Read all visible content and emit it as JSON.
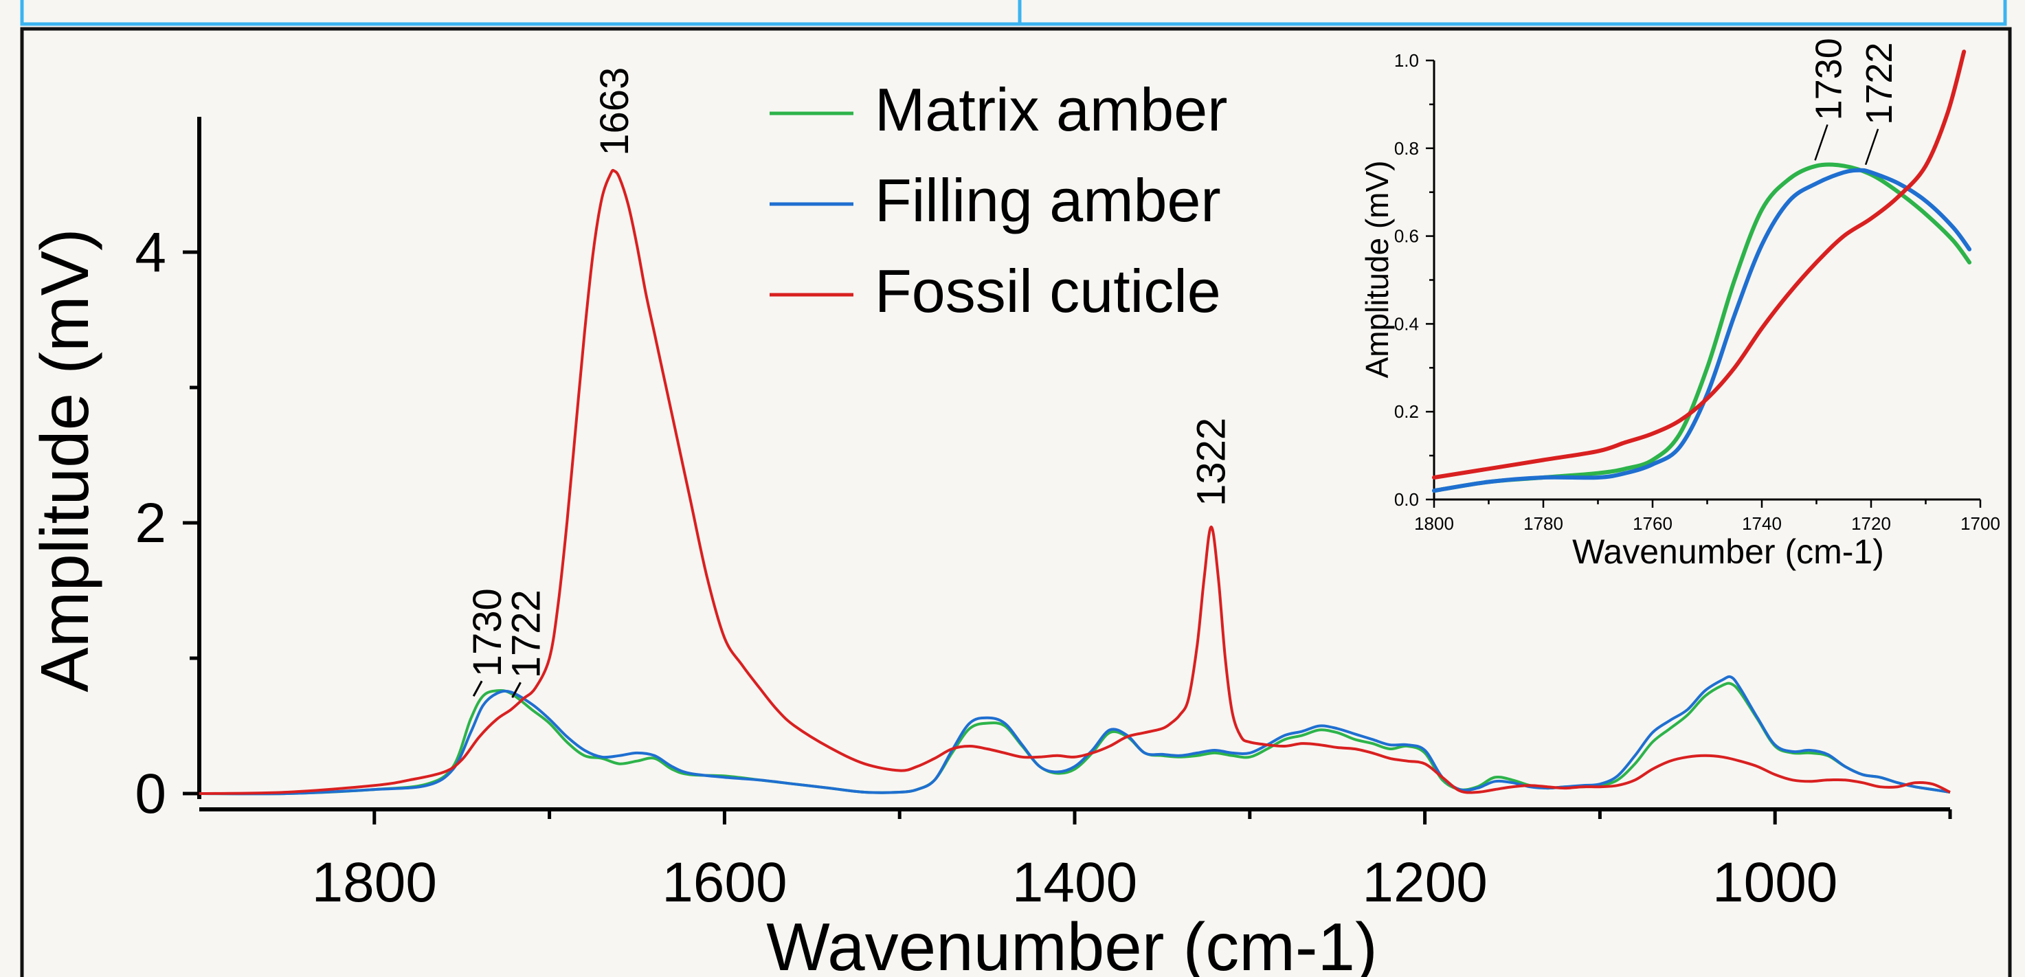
{
  "chart_data": [
    {
      "type": "line",
      "xlabel": "Wavenumber (cm-1)",
      "ylabel": "Amplitude (mV)",
      "xlim": [
        1900,
        900
      ],
      "ylim": [
        0,
        5
      ],
      "x_ticks": [
        1800,
        1600,
        1400,
        1200,
        1000
      ],
      "y_ticks": [
        0,
        2,
        4
      ],
      "grid": false,
      "legend_position": "top-center",
      "series": [
        {
          "name": "Matrix amber",
          "color": "#2db34a",
          "x": [
            1900,
            1850,
            1800,
            1770,
            1755,
            1745,
            1738,
            1730,
            1722,
            1710,
            1700,
            1690,
            1680,
            1670,
            1660,
            1650,
            1640,
            1630,
            1620,
            1600,
            1580,
            1560,
            1540,
            1520,
            1500,
            1490,
            1480,
            1470,
            1460,
            1450,
            1440,
            1430,
            1420,
            1410,
            1400,
            1390,
            1380,
            1370,
            1360,
            1350,
            1340,
            1330,
            1320,
            1310,
            1300,
            1290,
            1280,
            1270,
            1260,
            1250,
            1240,
            1230,
            1220,
            1210,
            1200,
            1190,
            1180,
            1170,
            1160,
            1150,
            1140,
            1130,
            1120,
            1110,
            1100,
            1090,
            1080,
            1070,
            1060,
            1050,
            1040,
            1030,
            1025,
            1020,
            1010,
            1000,
            990,
            980,
            970,
            960,
            950,
            940,
            930,
            920,
            910,
            900
          ],
          "y": [
            0,
            0,
            0.03,
            0.07,
            0.2,
            0.55,
            0.72,
            0.76,
            0.74,
            0.62,
            0.52,
            0.38,
            0.28,
            0.26,
            0.22,
            0.24,
            0.26,
            0.18,
            0.14,
            0.13,
            0.1,
            0.07,
            0.04,
            0.01,
            0.01,
            0.03,
            0.1,
            0.3,
            0.48,
            0.52,
            0.5,
            0.35,
            0.2,
            0.15,
            0.18,
            0.3,
            0.45,
            0.42,
            0.3,
            0.28,
            0.27,
            0.28,
            0.3,
            0.28,
            0.27,
            0.33,
            0.4,
            0.43,
            0.47,
            0.45,
            0.4,
            0.37,
            0.33,
            0.35,
            0.3,
            0.1,
            0.03,
            0.05,
            0.12,
            0.1,
            0.06,
            0.04,
            0.05,
            0.05,
            0.06,
            0.1,
            0.22,
            0.38,
            0.48,
            0.58,
            0.72,
            0.8,
            0.81,
            0.75,
            0.55,
            0.35,
            0.3,
            0.3,
            0.28,
            0.2,
            0.14,
            0.12,
            0.08,
            0.05,
            0.03,
            0.01
          ]
        },
        {
          "name": "Filling amber",
          "color": "#1f6fd0",
          "x": [
            1900,
            1850,
            1800,
            1770,
            1755,
            1745,
            1738,
            1730,
            1722,
            1710,
            1700,
            1690,
            1680,
            1670,
            1660,
            1650,
            1640,
            1630,
            1620,
            1600,
            1580,
            1560,
            1540,
            1520,
            1500,
            1490,
            1480,
            1470,
            1460,
            1450,
            1440,
            1430,
            1420,
            1410,
            1400,
            1390,
            1380,
            1370,
            1360,
            1350,
            1340,
            1330,
            1320,
            1310,
            1300,
            1290,
            1280,
            1270,
            1260,
            1250,
            1240,
            1230,
            1220,
            1210,
            1200,
            1190,
            1180,
            1170,
            1160,
            1150,
            1140,
            1130,
            1120,
            1110,
            1100,
            1090,
            1080,
            1070,
            1060,
            1050,
            1040,
            1030,
            1025,
            1020,
            1010,
            1000,
            990,
            980,
            970,
            960,
            950,
            940,
            930,
            920,
            910,
            900
          ],
          "y": [
            0,
            0,
            0.03,
            0.06,
            0.18,
            0.45,
            0.65,
            0.74,
            0.75,
            0.66,
            0.55,
            0.42,
            0.32,
            0.27,
            0.28,
            0.3,
            0.28,
            0.2,
            0.15,
            0.12,
            0.1,
            0.07,
            0.04,
            0.01,
            0.01,
            0.03,
            0.1,
            0.32,
            0.52,
            0.56,
            0.52,
            0.36,
            0.2,
            0.16,
            0.2,
            0.32,
            0.47,
            0.43,
            0.3,
            0.29,
            0.28,
            0.3,
            0.32,
            0.3,
            0.3,
            0.36,
            0.43,
            0.46,
            0.5,
            0.48,
            0.44,
            0.4,
            0.36,
            0.36,
            0.32,
            0.12,
            0.03,
            0.04,
            0.09,
            0.08,
            0.05,
            0.04,
            0.05,
            0.06,
            0.07,
            0.13,
            0.28,
            0.45,
            0.54,
            0.62,
            0.76,
            0.84,
            0.86,
            0.78,
            0.56,
            0.36,
            0.31,
            0.32,
            0.29,
            0.2,
            0.14,
            0.12,
            0.08,
            0.05,
            0.03,
            0.01
          ]
        },
        {
          "name": "Fossil cuticle",
          "color": "#d92020",
          "x": [
            1900,
            1850,
            1800,
            1780,
            1760,
            1750,
            1740,
            1730,
            1722,
            1715,
            1708,
            1700,
            1695,
            1690,
            1685,
            1680,
            1675,
            1670,
            1665,
            1663,
            1660,
            1655,
            1650,
            1645,
            1640,
            1635,
            1630,
            1620,
            1610,
            1600,
            1590,
            1580,
            1570,
            1560,
            1540,
            1520,
            1500,
            1490,
            1480,
            1470,
            1460,
            1450,
            1440,
            1430,
            1420,
            1410,
            1400,
            1390,
            1380,
            1370,
            1360,
            1350,
            1345,
            1340,
            1335,
            1330,
            1326,
            1322,
            1318,
            1314,
            1310,
            1305,
            1300,
            1290,
            1280,
            1270,
            1260,
            1250,
            1240,
            1230,
            1220,
            1210,
            1200,
            1190,
            1180,
            1170,
            1160,
            1150,
            1140,
            1130,
            1120,
            1110,
            1100,
            1090,
            1080,
            1070,
            1060,
            1050,
            1040,
            1030,
            1020,
            1010,
            1000,
            990,
            980,
            970,
            960,
            950,
            940,
            930,
            920,
            910,
            900
          ],
          "y": [
            0,
            0.01,
            0.06,
            0.1,
            0.16,
            0.25,
            0.42,
            0.55,
            0.62,
            0.7,
            0.78,
            1.0,
            1.4,
            2.0,
            2.7,
            3.4,
            4.0,
            4.4,
            4.58,
            4.6,
            4.55,
            4.35,
            4.05,
            3.7,
            3.4,
            3.1,
            2.8,
            2.2,
            1.6,
            1.15,
            0.95,
            0.78,
            0.62,
            0.5,
            0.34,
            0.22,
            0.17,
            0.2,
            0.26,
            0.33,
            0.35,
            0.33,
            0.3,
            0.27,
            0.27,
            0.28,
            0.27,
            0.3,
            0.35,
            0.42,
            0.45,
            0.48,
            0.52,
            0.58,
            0.7,
            1.1,
            1.6,
            1.97,
            1.6,
            1.0,
            0.6,
            0.42,
            0.38,
            0.36,
            0.35,
            0.37,
            0.36,
            0.34,
            0.33,
            0.3,
            0.26,
            0.24,
            0.22,
            0.12,
            0.02,
            0.01,
            0.03,
            0.05,
            0.06,
            0.05,
            0.04,
            0.05,
            0.05,
            0.06,
            0.1,
            0.18,
            0.24,
            0.27,
            0.28,
            0.27,
            0.24,
            0.2,
            0.14,
            0.1,
            0.09,
            0.1,
            0.1,
            0.08,
            0.05,
            0.05,
            0.08,
            0.07,
            0.01
          ]
        }
      ],
      "annotations": [
        {
          "text": "1663",
          "x": 1663,
          "y": 4.6
        },
        {
          "text": "1322",
          "x": 1322,
          "y": 1.97
        },
        {
          "text": "1730",
          "x": 1730,
          "y": 0.76
        },
        {
          "text": "1722",
          "x": 1722,
          "y": 0.75
        }
      ]
    },
    {
      "type": "line",
      "xlabel": "Wavenumber (cm-1)",
      "ylabel": "Amplitude (mV)",
      "xlim": [
        1800,
        1700
      ],
      "ylim": [
        0,
        1.0
      ],
      "x_ticks": [
        1800,
        1780,
        1760,
        1740,
        1720,
        1700
      ],
      "x_tick_labels": [
        "1800",
        "1780",
        "1760",
        "1740",
        "1720",
        "1700"
      ],
      "y_ticks": [
        0,
        0.2,
        0.4,
        0.6,
        0.8,
        1.0
      ],
      "y_tick_labels": [
        "0.0",
        "0.2",
        "0.4",
        "0.6",
        "0.8",
        "1.0"
      ],
      "grid": false,
      "legend_position": "none",
      "series": [
        {
          "name": "Matrix amber",
          "color": "#2db34a",
          "x": [
            1800,
            1790,
            1780,
            1770,
            1765,
            1760,
            1755,
            1750,
            1745,
            1740,
            1735,
            1730,
            1725,
            1720,
            1715,
            1710,
            1705,
            1702
          ],
          "y": [
            0.02,
            0.04,
            0.05,
            0.06,
            0.07,
            0.09,
            0.15,
            0.3,
            0.5,
            0.66,
            0.73,
            0.76,
            0.76,
            0.74,
            0.7,
            0.65,
            0.59,
            0.54
          ]
        },
        {
          "name": "Filling amber",
          "color": "#1f6fd0",
          "x": [
            1800,
            1790,
            1780,
            1770,
            1765,
            1760,
            1755,
            1750,
            1745,
            1740,
            1735,
            1730,
            1725,
            1722,
            1720,
            1715,
            1710,
            1705,
            1702
          ],
          "y": [
            0.02,
            0.04,
            0.05,
            0.05,
            0.06,
            0.08,
            0.12,
            0.24,
            0.42,
            0.58,
            0.68,
            0.72,
            0.745,
            0.75,
            0.745,
            0.72,
            0.68,
            0.62,
            0.57
          ]
        },
        {
          "name": "Fossil cuticle",
          "color": "#d92020",
          "x": [
            1800,
            1790,
            1780,
            1770,
            1765,
            1760,
            1755,
            1750,
            1745,
            1740,
            1735,
            1730,
            1725,
            1720,
            1715,
            1710,
            1706,
            1703
          ],
          "y": [
            0.05,
            0.07,
            0.09,
            0.11,
            0.13,
            0.15,
            0.18,
            0.23,
            0.3,
            0.39,
            0.47,
            0.54,
            0.6,
            0.64,
            0.69,
            0.76,
            0.88,
            1.02
          ]
        }
      ],
      "annotations": [
        {
          "text": "1730",
          "x": 1730,
          "y": 0.76
        },
        {
          "text": "1722",
          "x": 1722,
          "y": 0.75
        }
      ]
    }
  ]
}
